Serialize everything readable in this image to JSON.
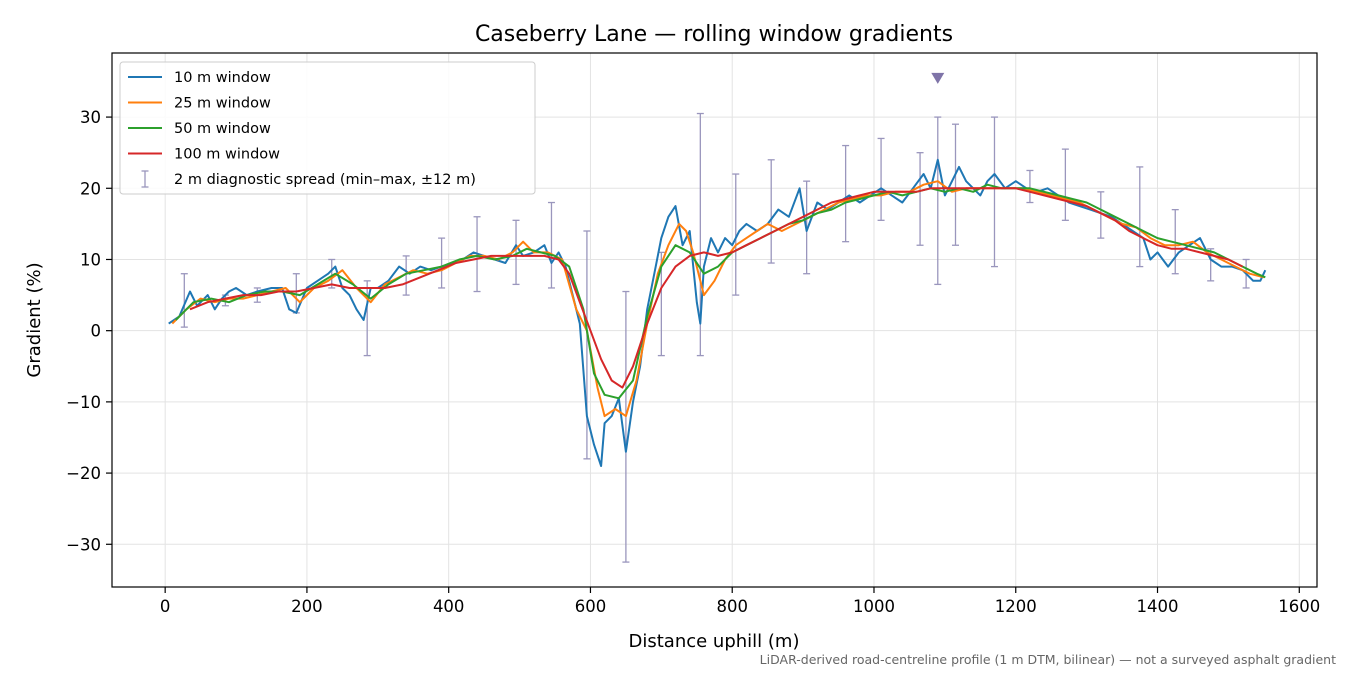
{
  "chart_data": {
    "type": "line",
    "title": "Caseberry Lane — rolling window gradients",
    "xlabel": "Distance uphill (m)",
    "ylabel": "Gradient (%)",
    "note": "LiDAR-derived road-centreline profile (1 m DTM, bilinear) — not a surveyed asphalt gradient",
    "xlim": [
      -75,
      1625
    ],
    "ylim": [
      -36,
      39
    ],
    "xticks": [
      0,
      200,
      400,
      600,
      800,
      1000,
      1200,
      1400,
      1600
    ],
    "xtick_labels": [
      "0",
      "200",
      "400",
      "600",
      "800",
      "1000",
      "1200",
      "1400",
      "1600"
    ],
    "yticks": [
      -30,
      -20,
      -10,
      0,
      10,
      20,
      30
    ],
    "ytick_labels": [
      "−30",
      "−20",
      "−10",
      "0",
      "10",
      "20",
      "30"
    ],
    "grid": true,
    "legend_position": "top-left",
    "series": [
      {
        "name": "10 m window",
        "color": "#1f77b4",
        "x": [
          5,
          20,
          35,
          45,
          60,
          70,
          80,
          90,
          100,
          115,
          130,
          150,
          165,
          175,
          185,
          200,
          215,
          230,
          240,
          250,
          260,
          270,
          280,
          290,
          300,
          315,
          330,
          345,
          360,
          375,
          390,
          405,
          420,
          435,
          450,
          465,
          480,
          495,
          505,
          520,
          535,
          545,
          555,
          565,
          575,
          585,
          595,
          605,
          615,
          620,
          630,
          640,
          650,
          660,
          670,
          680,
          690,
          700,
          710,
          720,
          730,
          740,
          750,
          755,
          760,
          770,
          780,
          790,
          800,
          810,
          820,
          835,
          850,
          865,
          880,
          895,
          905,
          920,
          935,
          950,
          965,
          980,
          995,
          1010,
          1025,
          1040,
          1055,
          1070,
          1080,
          1090,
          1100,
          1110,
          1120,
          1130,
          1140,
          1150,
          1160,
          1170,
          1185,
          1200,
          1215,
          1230,
          1245,
          1260,
          1275,
          1290,
          1305,
          1320,
          1335,
          1350,
          1365,
          1380,
          1390,
          1400,
          1415,
          1430,
          1445,
          1460,
          1475,
          1490,
          1505,
          1520,
          1535,
          1545,
          1552
        ],
        "y": [
          1,
          2,
          5.5,
          3.5,
          5,
          3,
          4.5,
          5.5,
          6,
          5,
          5.5,
          6,
          6,
          3,
          2.5,
          6,
          7,
          8,
          9,
          6,
          5,
          3,
          1.5,
          6,
          6,
          7,
          9,
          8,
          9,
          8.5,
          9,
          9.5,
          10,
          11,
          10.5,
          10,
          9.5,
          12,
          10.5,
          11,
          12,
          9.5,
          11,
          9,
          5,
          1,
          -12,
          -16,
          -19,
          -13,
          -12,
          -9.5,
          -17,
          -10,
          -5,
          3,
          8,
          13,
          16,
          17.5,
          12,
          14,
          4,
          1,
          9,
          13,
          11,
          13,
          12,
          14,
          15,
          14,
          15,
          17,
          16,
          20,
          14,
          18,
          17,
          18,
          19,
          18,
          19,
          20,
          19,
          18,
          20,
          22,
          20,
          24,
          19,
          21,
          23,
          21,
          20,
          19,
          21,
          22,
          20,
          21,
          20,
          19.5,
          20,
          19,
          18,
          17.5,
          17,
          16.5,
          16,
          15,
          14,
          13,
          10,
          11,
          9,
          11,
          12,
          13,
          10,
          9,
          9,
          8.5,
          7,
          7,
          8.5
        ]
      },
      {
        "name": "25 m window",
        "color": "#ff7f0e",
        "x": [
          10,
          30,
          50,
          70,
          90,
          110,
          130,
          150,
          170,
          190,
          210,
          230,
          250,
          270,
          290,
          310,
          330,
          350,
          370,
          390,
          410,
          430,
          450,
          470,
          490,
          505,
          520,
          540,
          560,
          580,
          595,
          610,
          620,
          635,
          650,
          665,
          680,
          695,
          710,
          725,
          735,
          745,
          760,
          775,
          790,
          805,
          820,
          835,
          850,
          870,
          890,
          910,
          930,
          950,
          970,
          990,
          1010,
          1030,
          1050,
          1070,
          1090,
          1110,
          1130,
          1150,
          1170,
          1190,
          1210,
          1230,
          1250,
          1270,
          1290,
          1310,
          1330,
          1350,
          1370,
          1390,
          1410,
          1430,
          1450,
          1470,
          1490,
          1510,
          1530,
          1550
        ],
        "y": [
          1,
          3,
          4.5,
          4,
          4.5,
          4.5,
          5,
          5.5,
          6,
          4,
          6,
          7,
          8.5,
          6,
          4,
          6.5,
          7.5,
          8.5,
          8,
          8.5,
          9.5,
          10.5,
          10.5,
          10,
          11,
          12.5,
          11,
          11,
          10,
          3,
          0,
          -8,
          -12,
          -11,
          -12,
          -7,
          1,
          8,
          12,
          15,
          14,
          11,
          5,
          7,
          10,
          12,
          13,
          14,
          15,
          14,
          15,
          16,
          17,
          18,
          18.5,
          19,
          19,
          19.5,
          19.5,
          20.5,
          21,
          19.5,
          20,
          20,
          20,
          20,
          20,
          19.5,
          19,
          18.5,
          18,
          17,
          16,
          15,
          14.5,
          13,
          12,
          12,
          12.5,
          11,
          10,
          9,
          8,
          7.5
        ]
      },
      {
        "name": "50 m window",
        "color": "#2ca02c",
        "x": [
          15,
          40,
          65,
          90,
          115,
          140,
          165,
          190,
          215,
          240,
          265,
          290,
          315,
          340,
          365,
          390,
          415,
          440,
          465,
          490,
          510,
          530,
          550,
          570,
          590,
          605,
          620,
          640,
          660,
          680,
          700,
          720,
          740,
          760,
          780,
          800,
          820,
          840,
          860,
          880,
          900,
          920,
          940,
          960,
          980,
          1000,
          1020,
          1040,
          1060,
          1080,
          1100,
          1120,
          1140,
          1160,
          1180,
          1200,
          1220,
          1240,
          1260,
          1280,
          1300,
          1320,
          1340,
          1360,
          1380,
          1400,
          1420,
          1440,
          1460,
          1480,
          1500,
          1520,
          1540,
          1552
        ],
        "y": [
          1.5,
          4,
          4.5,
          4,
          5,
          5.5,
          5.5,
          5,
          6.5,
          8,
          6.5,
          4.5,
          6.5,
          8,
          8.5,
          9,
          10,
          10.5,
          10,
          10.5,
          11.5,
          11,
          10.5,
          9,
          3,
          -6,
          -9,
          -9.5,
          -7,
          2,
          9,
          12,
          11,
          8,
          9,
          11,
          12,
          13,
          14,
          15,
          15.5,
          16.5,
          17,
          18,
          18.5,
          19,
          19.5,
          19,
          19.5,
          20,
          19.5,
          20,
          19.5,
          20.5,
          20,
          20,
          20,
          19.5,
          19,
          18.5,
          18,
          17,
          16,
          15,
          14,
          13,
          12.5,
          12,
          11.5,
          11,
          10,
          9,
          8,
          7.5
        ]
      },
      {
        "name": "100 m window",
        "color": "#d62728",
        "x": [
          35,
          60,
          85,
          110,
          135,
          160,
          185,
          210,
          235,
          260,
          285,
          310,
          335,
          360,
          385,
          410,
          435,
          460,
          485,
          510,
          535,
          555,
          570,
          585,
          600,
          615,
          630,
          645,
          660,
          680,
          700,
          720,
          740,
          760,
          780,
          800,
          820,
          840,
          860,
          880,
          900,
          920,
          940,
          960,
          980,
          1000,
          1020,
          1040,
          1060,
          1080,
          1100,
          1120,
          1140,
          1160,
          1180,
          1200,
          1220,
          1240,
          1260,
          1280,
          1300,
          1320,
          1340,
          1360,
          1380,
          1400,
          1420,
          1440,
          1460,
          1480,
          1500,
          1520
        ],
        "y": [
          3,
          4,
          4.5,
          5,
          5,
          5.5,
          5.5,
          6,
          6.5,
          6,
          6,
          6,
          6.5,
          7.5,
          8.5,
          9.5,
          10,
          10.5,
          10.5,
          10.5,
          10.5,
          10,
          8,
          4,
          0,
          -4,
          -7,
          -8,
          -5,
          1,
          6,
          9,
          10.5,
          11,
          10.5,
          11,
          12,
          13,
          14,
          15,
          16,
          17,
          18,
          18.5,
          19,
          19.5,
          19.5,
          19.5,
          19.5,
          20,
          20,
          20,
          20,
          20,
          20,
          20,
          19.5,
          19,
          18.5,
          18,
          17.5,
          16.5,
          15.5,
          14,
          13,
          12,
          11.5,
          11.5,
          11,
          10.5,
          10,
          9
        ]
      }
    ],
    "errorbars": {
      "name": "2 m diagnostic spread (min–max, ±12 m)",
      "color": "#9a96bd",
      "points": [
        {
          "x": 27,
          "lo": 0.5,
          "hi": 8
        },
        {
          "x": 85,
          "lo": 3.5,
          "hi": 5
        },
        {
          "x": 130,
          "lo": 4,
          "hi": 6
        },
        {
          "x": 185,
          "lo": 2.5,
          "hi": 8
        },
        {
          "x": 235,
          "lo": 6,
          "hi": 10
        },
        {
          "x": 285,
          "lo": -3.5,
          "hi": 7
        },
        {
          "x": 340,
          "lo": 5,
          "hi": 10.5
        },
        {
          "x": 390,
          "lo": 6,
          "hi": 13
        },
        {
          "x": 440,
          "lo": 5.5,
          "hi": 16
        },
        {
          "x": 495,
          "lo": 6.5,
          "hi": 15.5
        },
        {
          "x": 545,
          "lo": 6,
          "hi": 18
        },
        {
          "x": 595,
          "lo": -18,
          "hi": 14
        },
        {
          "x": 650,
          "lo": -32.5,
          "hi": 5.5
        },
        {
          "x": 700,
          "lo": -3.5,
          "hi": 11
        },
        {
          "x": 755,
          "lo": -3.5,
          "hi": 30.5
        },
        {
          "x": 805,
          "lo": 5,
          "hi": 22
        },
        {
          "x": 855,
          "lo": 9.5,
          "hi": 24
        },
        {
          "x": 905,
          "lo": 8,
          "hi": 21
        },
        {
          "x": 960,
          "lo": 12.5,
          "hi": 26
        },
        {
          "x": 1010,
          "lo": 15.5,
          "hi": 27
        },
        {
          "x": 1065,
          "lo": 12,
          "hi": 25
        },
        {
          "x": 1090,
          "lo": 6.5,
          "hi": 30
        },
        {
          "x": 1115,
          "lo": 12,
          "hi": 29
        },
        {
          "x": 1170,
          "lo": 9,
          "hi": 30
        },
        {
          "x": 1220,
          "lo": 18,
          "hi": 22.5
        },
        {
          "x": 1270,
          "lo": 15.5,
          "hi": 25.5
        },
        {
          "x": 1320,
          "lo": 13,
          "hi": 19.5
        },
        {
          "x": 1375,
          "lo": 9,
          "hi": 23
        },
        {
          "x": 1425,
          "lo": 8,
          "hi": 17
        },
        {
          "x": 1475,
          "lo": 7,
          "hi": 11.5
        },
        {
          "x": 1525,
          "lo": 6,
          "hi": 10
        }
      ]
    },
    "marker": {
      "x": 1090,
      "y": 35.5,
      "shape": "triangle-down",
      "color": "#7f74a8"
    }
  }
}
